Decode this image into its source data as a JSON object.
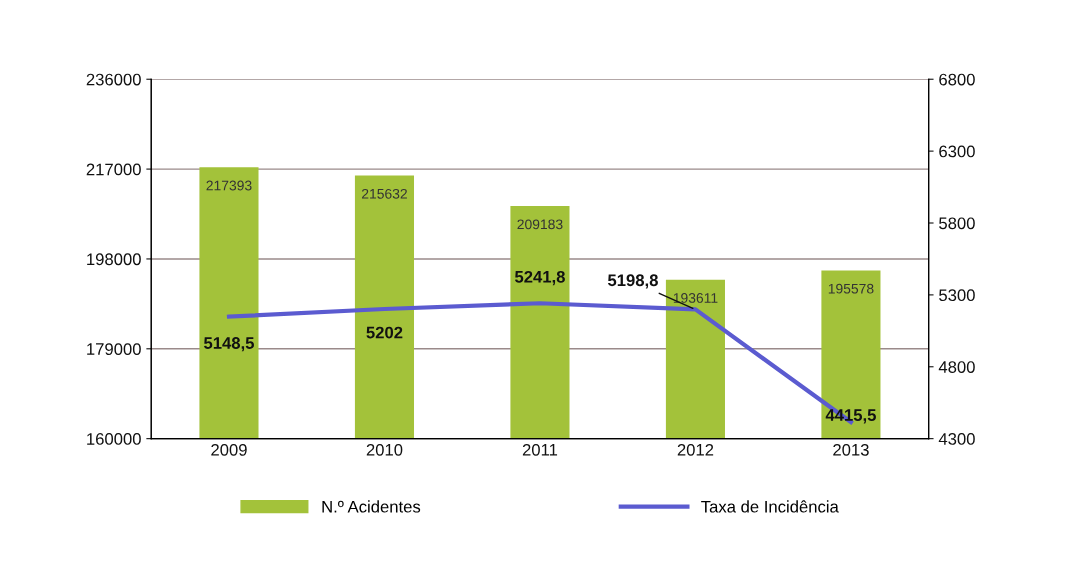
{
  "chart_data": {
    "type": "bar",
    "categories": [
      "2009",
      "2010",
      "2011",
      "2012",
      "2013"
    ],
    "series": [
      {
        "name": "N.º Acidentes",
        "color": "#a3c23a",
        "values": [
          217393,
          215632,
          209183,
          193611,
          195578
        ],
        "data_labels": true
      },
      {
        "name": "Taxa de Incidência",
        "type": "line",
        "axis": "y2",
        "color": "#5b5bd0",
        "values": [
          5148.5,
          5202,
          5241.8,
          5198.8,
          4415.5
        ],
        "value_labels": [
          "5148,5",
          "5202",
          "5241,8",
          "5198,8",
          "4415,5"
        ],
        "marker": "none"
      }
    ],
    "ylim": [
      160000,
      236000
    ],
    "yticks": [
      160000,
      179000,
      198000,
      217000,
      236000
    ],
    "y2lim": [
      4300,
      6800
    ],
    "y2ticks": [
      4300,
      4800,
      5300,
      5800,
      6300,
      6800
    ],
    "grid": "y",
    "legend": "bottom"
  }
}
